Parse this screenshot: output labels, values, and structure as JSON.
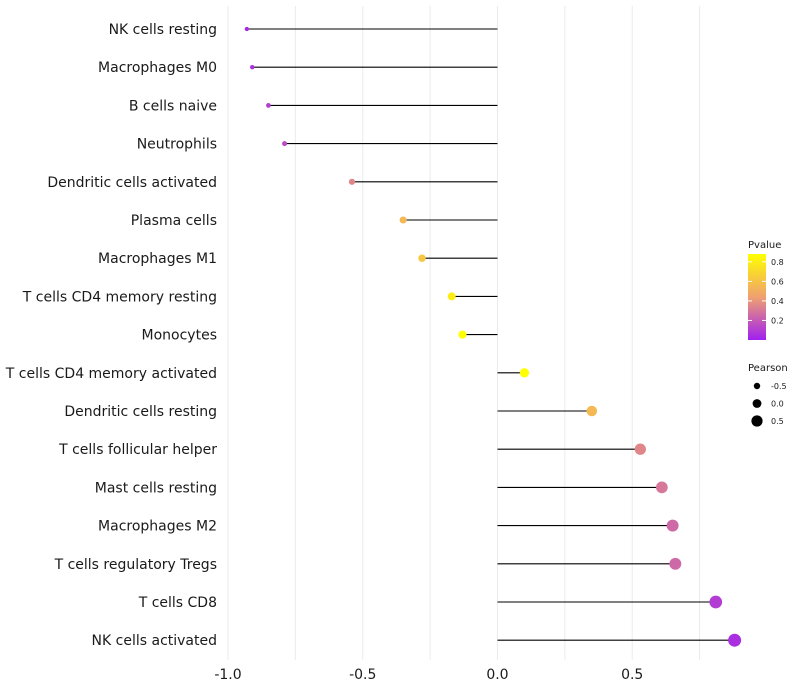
{
  "chart_data": {
    "type": "lollipop",
    "orientation": "horizontal",
    "title": "",
    "xlabel": "",
    "ylabel": "",
    "xlim": [
      -1.0,
      0.9
    ],
    "xticks": [
      -1.0,
      -0.5,
      0.0,
      0.5
    ],
    "xtick_labels": [
      "-1.0",
      "-0.5",
      "0.0",
      "0.5"
    ],
    "baseline": 0,
    "grid": true,
    "categories": [
      "NK cells resting",
      "Macrophages M0",
      "B cells naive",
      "Neutrophils",
      "Dendritic cells activated",
      "Plasma cells",
      "Macrophages M1",
      "T cells CD4 memory resting",
      "Monocytes",
      "T cells CD4 memory activated",
      "Dendritic cells resting",
      "T cells follicular helper",
      "Mast cells resting",
      "Macrophages M2",
      "T cells regulatory  Tregs",
      "T cells CD8",
      "NK cells activated"
    ],
    "pearson": [
      -0.93,
      -0.91,
      -0.85,
      -0.79,
      -0.54,
      -0.35,
      -0.28,
      -0.17,
      -0.13,
      0.1,
      0.35,
      0.53,
      0.61,
      0.65,
      0.66,
      0.81,
      0.88
    ],
    "pvalue": [
      0.03,
      0.05,
      0.1,
      0.15,
      0.35,
      0.55,
      0.62,
      0.8,
      0.88,
      0.9,
      0.55,
      0.35,
      0.3,
      0.25,
      0.25,
      0.1,
      0.05
    ],
    "legend": {
      "position": "right",
      "color_title": "Pvalue",
      "color_ticks": [
        "0.8",
        "0.6",
        "0.4",
        "0.2"
      ],
      "color_tick_values": [
        0.8,
        0.6,
        0.4,
        0.2
      ],
      "color_range": [
        0.0,
        0.88
      ],
      "colors": {
        "low": "#a020f0",
        "mid": "#f0a070",
        "high": "#ffff00"
      },
      "size_title": "Pearson",
      "size_ticks": [
        "-0.5",
        "0.0",
        "0.5"
      ]
    }
  }
}
